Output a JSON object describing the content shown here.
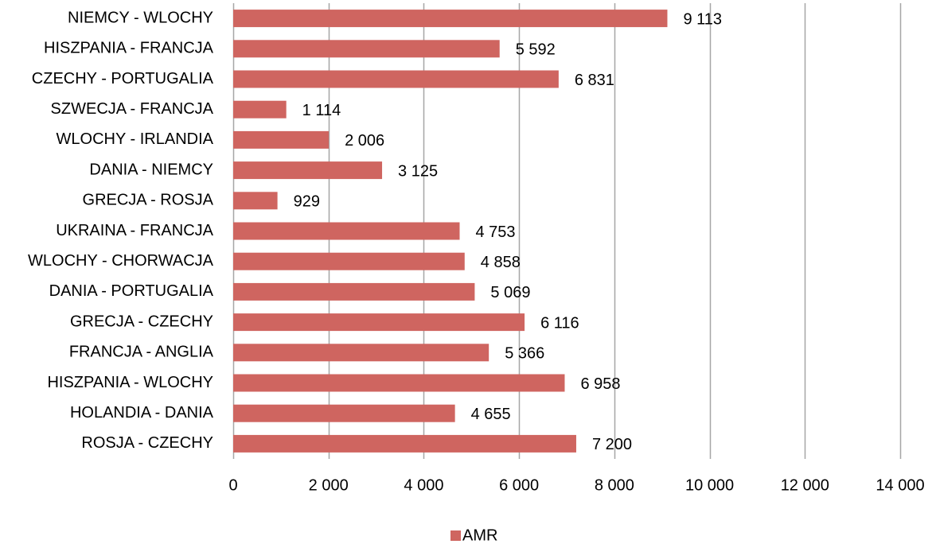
{
  "chart_data": {
    "type": "bar",
    "orientation": "horizontal",
    "categories": [
      "NIEMCY - WLOCHY",
      "HISZPANIA - FRANCJA",
      "CZECHY - PORTUGALIA",
      "SZWECJA - FRANCJA",
      "WLOCHY - IRLANDIA",
      "DANIA - NIEMCY",
      "GRECJA - ROSJA",
      "UKRAINA - FRANCJA",
      "WLOCHY - CHORWACJA",
      "DANIA - PORTUGALIA",
      "GRECJA - CZECHY",
      "FRANCJA - ANGLIA",
      "HISZPANIA - WLOCHY",
      "HOLANDIA - DANIA",
      "ROSJA - CZECHY"
    ],
    "series": [
      {
        "name": "AMR",
        "color": "#cf6560",
        "values": [
          9113,
          5592,
          6831,
          1114,
          2006,
          3125,
          929,
          4753,
          4858,
          5069,
          6116,
          5366,
          6958,
          4655,
          7200
        ],
        "data_labels": [
          "9 113",
          "5 592",
          "6 831",
          "1 114",
          "2 006",
          "3 125",
          "929",
          "4 753",
          "4 858",
          "5 069",
          "6 116",
          "5 366",
          "6 958",
          "4 655",
          "7 200"
        ]
      }
    ],
    "xlim": [
      0,
      14000
    ],
    "x_ticks": [
      0,
      2000,
      4000,
      6000,
      8000,
      10000,
      12000,
      14000
    ],
    "x_tick_labels": [
      "0",
      "2 000",
      "4 000",
      "6 000",
      "8 000",
      "10 000",
      "12 000",
      "14 000"
    ],
    "grid": "vertical",
    "grid_color": "#a6a6a6",
    "legend": {
      "position": "bottom",
      "entries": [
        "AMR"
      ]
    }
  }
}
